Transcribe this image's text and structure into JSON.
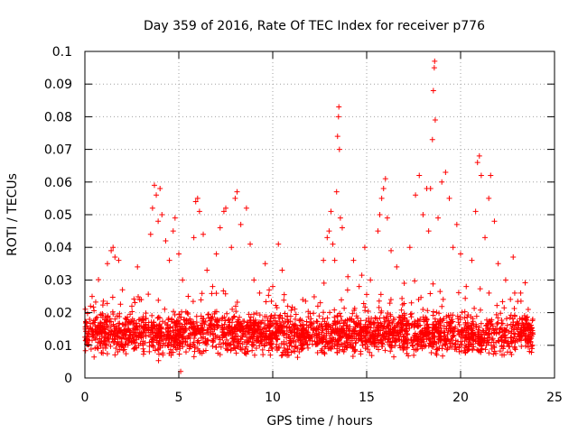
{
  "chart_data": {
    "type": "scatter",
    "title": "Day 359 of 2016, Rate Of TEC Index for receiver p776",
    "xlabel": "GPS time / hours",
    "ylabel": "ROTI / TECUs",
    "xlim": [
      0,
      25
    ],
    "ylim": [
      0,
      0.1
    ],
    "x_ticks": [
      0,
      5,
      10,
      15,
      20,
      25
    ],
    "x_tick_labels": [
      "0",
      "5",
      "10",
      "15",
      "20",
      "25"
    ],
    "y_ticks": [
      0,
      0.01,
      0.02,
      0.03,
      0.04,
      0.05,
      0.06,
      0.07,
      0.08,
      0.09,
      0.1
    ],
    "y_tick_labels": [
      "0",
      "0.01",
      "0.02",
      "0.03",
      "0.04",
      "0.05",
      "0.06",
      "0.07",
      "0.08",
      "0.09",
      "0.1"
    ],
    "grid": true,
    "marker": "+",
    "color": "#ff0000",
    "series": [
      {
        "name": "ROTI",
        "points": [
          [
            0.1,
            0.012
          ],
          [
            0.3,
            0.022
          ],
          [
            0.5,
            0.017
          ],
          [
            0.7,
            0.009
          ],
          [
            0.9,
            0.014
          ],
          [
            1.1,
            0.019
          ],
          [
            1.2,
            0.035
          ],
          [
            1.4,
            0.039
          ],
          [
            1.5,
            0.04
          ],
          [
            1.6,
            0.037
          ],
          [
            1.8,
            0.036
          ],
          [
            2.0,
            0.027
          ],
          [
            2.2,
            0.018
          ],
          [
            2.5,
            0.022
          ],
          [
            2.8,
            0.034
          ],
          [
            3.0,
            0.024
          ],
          [
            3.2,
            0.015
          ],
          [
            3.5,
            0.044
          ],
          [
            3.6,
            0.052
          ],
          [
            3.7,
            0.059
          ],
          [
            3.8,
            0.056
          ],
          [
            3.9,
            0.048
          ],
          [
            4.0,
            0.058
          ],
          [
            4.1,
            0.05
          ],
          [
            4.3,
            0.042
          ],
          [
            4.5,
            0.036
          ],
          [
            4.7,
            0.045
          ],
          [
            4.8,
            0.049
          ],
          [
            5.0,
            0.038
          ],
          [
            5.1,
            0.002
          ],
          [
            5.2,
            0.03
          ],
          [
            5.5,
            0.025
          ],
          [
            5.8,
            0.043
          ],
          [
            5.9,
            0.054
          ],
          [
            6.0,
            0.055
          ],
          [
            6.1,
            0.051
          ],
          [
            6.3,
            0.044
          ],
          [
            6.5,
            0.033
          ],
          [
            6.8,
            0.028
          ],
          [
            7.0,
            0.038
          ],
          [
            7.2,
            0.046
          ],
          [
            7.4,
            0.051
          ],
          [
            7.5,
            0.052
          ],
          [
            7.8,
            0.04
          ],
          [
            8.0,
            0.055
          ],
          [
            8.1,
            0.057
          ],
          [
            8.3,
            0.047
          ],
          [
            8.6,
            0.052
          ],
          [
            8.8,
            0.041
          ],
          [
            9.0,
            0.03
          ],
          [
            9.3,
            0.026
          ],
          [
            9.6,
            0.035
          ],
          [
            10.0,
            0.028
          ],
          [
            10.3,
            0.041
          ],
          [
            10.5,
            0.033
          ],
          [
            10.8,
            0.022
          ],
          [
            11.2,
            0.018
          ],
          [
            11.6,
            0.024
          ],
          [
            12.0,
            0.016
          ],
          [
            12.4,
            0.022
          ],
          [
            12.7,
            0.036
          ],
          [
            12.9,
            0.043
          ],
          [
            13.0,
            0.045
          ],
          [
            13.1,
            0.051
          ],
          [
            13.2,
            0.041
          ],
          [
            13.3,
            0.036
          ],
          [
            13.4,
            0.057
          ],
          [
            13.45,
            0.074
          ],
          [
            13.5,
            0.08
          ],
          [
            13.52,
            0.083
          ],
          [
            13.55,
            0.07
          ],
          [
            13.6,
            0.049
          ],
          [
            13.7,
            0.046
          ],
          [
            14.0,
            0.031
          ],
          [
            14.3,
            0.036
          ],
          [
            14.6,
            0.028
          ],
          [
            14.9,
            0.04
          ],
          [
            15.2,
            0.03
          ],
          [
            15.6,
            0.045
          ],
          [
            15.7,
            0.05
          ],
          [
            15.8,
            0.055
          ],
          [
            15.9,
            0.058
          ],
          [
            16.0,
            0.061
          ],
          [
            16.1,
            0.049
          ],
          [
            16.3,
            0.039
          ],
          [
            16.6,
            0.034
          ],
          [
            17.0,
            0.029
          ],
          [
            17.3,
            0.04
          ],
          [
            17.6,
            0.056
          ],
          [
            17.8,
            0.062
          ],
          [
            18.0,
            0.05
          ],
          [
            18.2,
            0.058
          ],
          [
            18.3,
            0.045
          ],
          [
            18.4,
            0.058
          ],
          [
            18.5,
            0.073
          ],
          [
            18.55,
            0.088
          ],
          [
            18.6,
            0.095
          ],
          [
            18.62,
            0.097
          ],
          [
            18.65,
            0.079
          ],
          [
            18.8,
            0.049
          ],
          [
            19.0,
            0.06
          ],
          [
            19.2,
            0.063
          ],
          [
            19.4,
            0.055
          ],
          [
            19.6,
            0.04
          ],
          [
            19.8,
            0.047
          ],
          [
            20.0,
            0.038
          ],
          [
            20.3,
            0.028
          ],
          [
            20.6,
            0.036
          ],
          [
            20.8,
            0.051
          ],
          [
            20.9,
            0.066
          ],
          [
            21.0,
            0.068
          ],
          [
            21.1,
            0.062
          ],
          [
            21.3,
            0.043
          ],
          [
            21.5,
            0.055
          ],
          [
            21.6,
            0.062
          ],
          [
            21.8,
            0.048
          ],
          [
            22.0,
            0.035
          ],
          [
            22.4,
            0.03
          ],
          [
            22.8,
            0.037
          ],
          [
            23.2,
            0.026
          ],
          [
            23.6,
            0.021
          ],
          [
            23.8,
            0.009
          ]
        ]
      }
    ]
  }
}
